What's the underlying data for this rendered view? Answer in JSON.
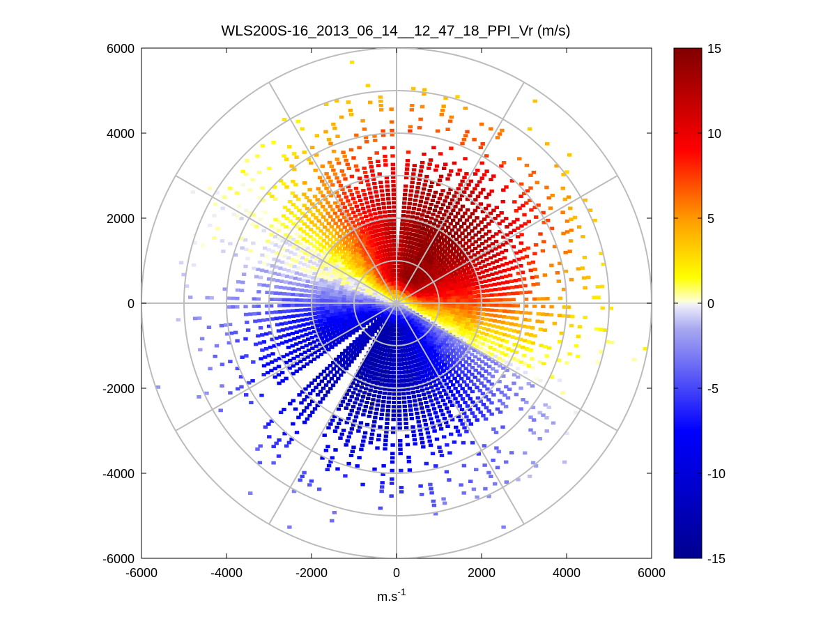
{
  "chart_data": {
    "type": "heatmap",
    "subtype": "polar-ppi",
    "title": "WLS200S-16_2013_06_14__12_47_18_PPI_Vr (m/s)",
    "xlabel": "m.s",
    "xlabel_superscript": "-1",
    "ylabel": "",
    "xlim": [
      -6000,
      6000
    ],
    "ylim": [
      -6000,
      6000
    ],
    "xticks": [
      "-6000",
      "-4000",
      "-2000",
      "0",
      "2000",
      "4000",
      "6000"
    ],
    "yticks": [
      "6000",
      "4000",
      "2000",
      "0",
      "-2000",
      "-4000",
      "-6000"
    ],
    "range_rings_m": [
      1000,
      2000,
      3000,
      4000,
      5000,
      6000
    ],
    "spokes_deg": [
      0,
      30,
      60,
      90,
      120,
      150,
      180,
      210,
      240,
      270,
      300,
      330
    ],
    "colorbar": {
      "range": [
        -15,
        15
      ],
      "ticks": [
        "15",
        "10",
        "5",
        "0",
        "-5",
        "-10",
        "-15"
      ]
    },
    "field_description": {
      "approaching_negative_bearing_deg": 200,
      "receding_positive_bearing_deg": 30,
      "max_velocity": 14,
      "min_velocity": -13,
      "dense_core_range_m": 3000,
      "sparse_outer_range_m": 5200
    }
  }
}
